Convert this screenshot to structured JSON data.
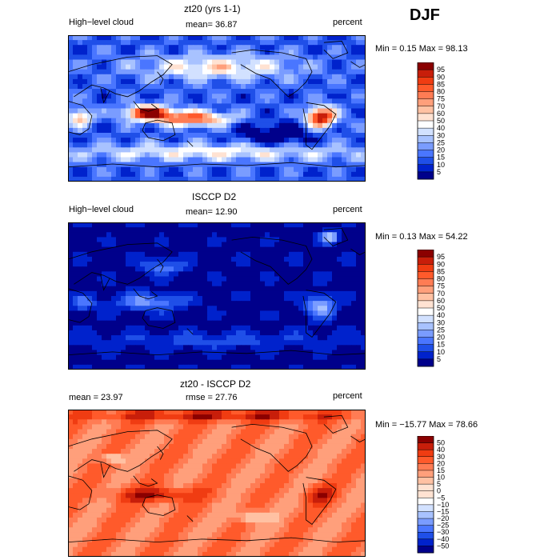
{
  "season": "DJF",
  "colors": {
    "seq": [
      "#00008b",
      "#0022cc",
      "#1f4fe8",
      "#4a76ff",
      "#7a9cff",
      "#a8c2ff",
      "#d2e1ff",
      "#ffffff",
      "#ffe2d2",
      "#ffc1a3",
      "#ff9f7b",
      "#ff7c54",
      "#ff5a2b",
      "#f03c12",
      "#c81e0a",
      "#8b0000"
    ],
    "div": [
      "#00008b",
      "#0022cc",
      "#1f4fe8",
      "#4a76ff",
      "#7a9cff",
      "#a8c2ff",
      "#d2e1ff",
      "#ffffff",
      "#ffe2d2",
      "#ffc1a3",
      "#ff9f7b",
      "#ff7c54",
      "#ff5a2b",
      "#f03c12",
      "#c81e0a",
      "#8b0000"
    ]
  },
  "panels": [
    {
      "id": "model",
      "title": "zt20 (yrs 1-1)",
      "left_label": "High−level cloud",
      "center_label": "mean=  36.87",
      "right_label": "percent",
      "minmax": "Min =    0.15 Max =   98.13",
      "palette": "seq",
      "field": "model"
    },
    {
      "id": "obs",
      "title": "ISCCP D2",
      "left_label": "High−level cloud",
      "center_label": "mean=  12.90",
      "right_label": "percent",
      "minmax": "Min =    0.13 Max =   54.22",
      "palette": "seq",
      "field": "obs"
    },
    {
      "id": "diff",
      "title": "zt20 - ISCCP D2",
      "left_label": "mean =   23.97",
      "center_label": "rmse =   27.76",
      "right_label": "percent",
      "minmax": "Min = −15.77 Max =   78.66",
      "palette": "div",
      "field": "diff"
    }
  ],
  "chart_data": [
    {
      "type": "heatmap",
      "title": "zt20 (yrs 1-1)",
      "variable": "High-level cloud",
      "units": "percent",
      "mean": 36.87,
      "min": 0.15,
      "max": 98.13,
      "colorbar_levels": [
        5,
        10,
        15,
        20,
        25,
        30,
        40,
        50,
        60,
        70,
        75,
        80,
        85,
        90,
        95
      ],
      "colorbar_labels": [
        "95",
        "90",
        "85",
        "80",
        "75",
        "70",
        "60",
        "50",
        "40",
        "30",
        "25",
        "20",
        "15",
        "10",
        "5"
      ]
    },
    {
      "type": "heatmap",
      "title": "ISCCP D2",
      "variable": "High-level cloud",
      "units": "percent",
      "mean": 12.9,
      "min": 0.13,
      "max": 54.22,
      "colorbar_levels": [
        5,
        10,
        15,
        20,
        25,
        30,
        40,
        50,
        60,
        70,
        75,
        80,
        85,
        90,
        95
      ],
      "colorbar_labels": [
        "95",
        "90",
        "85",
        "80",
        "75",
        "70",
        "60",
        "50",
        "40",
        "30",
        "25",
        "20",
        "15",
        "10",
        "5"
      ]
    },
    {
      "type": "heatmap",
      "title": "zt20 - ISCCP D2",
      "units": "percent",
      "mean": 23.97,
      "rmse": 27.76,
      "min": -15.77,
      "max": 78.66,
      "colorbar_levels": [
        -50,
        -40,
        -30,
        -25,
        -20,
        -15,
        -10,
        -5,
        0,
        5,
        10,
        15,
        20,
        30,
        40,
        50
      ],
      "colorbar_labels": [
        "50",
        "40",
        "30",
        "20",
        "15",
        "10",
        "5",
        "0",
        "−5",
        "−10",
        "−15",
        "−20",
        "−25",
        "−30",
        "−40",
        "−50"
      ]
    }
  ]
}
